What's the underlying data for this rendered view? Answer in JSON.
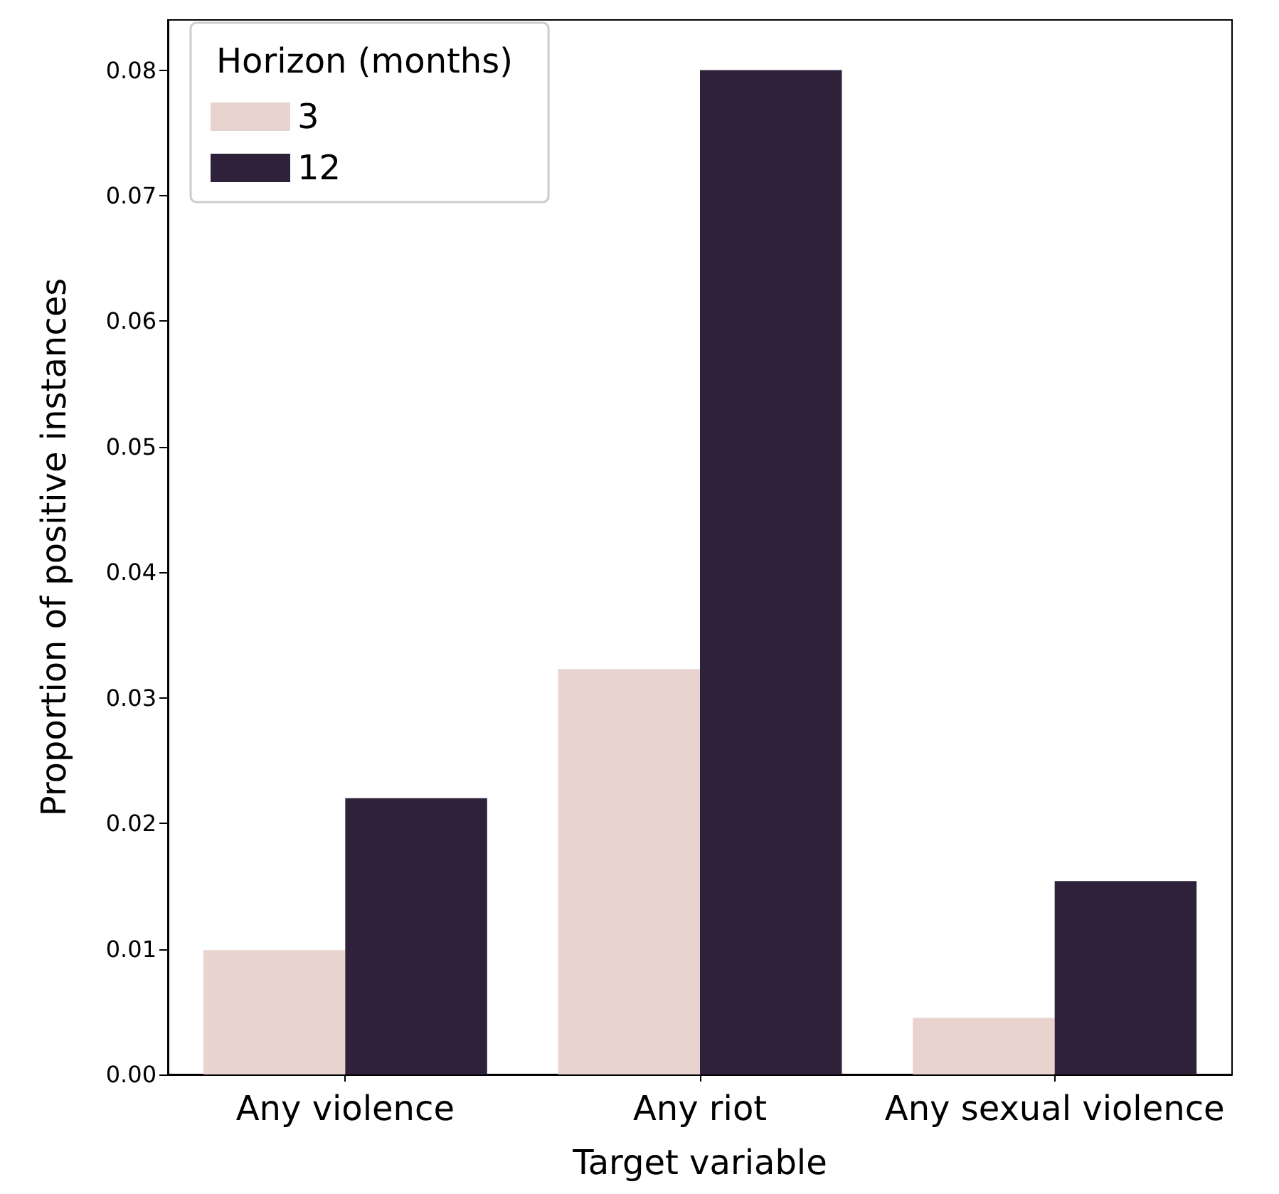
{
  "chart_data": {
    "type": "bar",
    "xlabel": "Target variable",
    "ylabel": "Proportion of positive instances",
    "legend_title": "Horizon (months)",
    "categories": [
      "Any violence",
      "Any riot",
      "Any sexual violence"
    ],
    "series": [
      {
        "name": "3",
        "color": "#e8d3cf",
        "values": [
          0.0099,
          0.0323,
          0.0045
        ]
      },
      {
        "name": "12",
        "color": "#2f2139",
        "values": [
          0.022,
          0.08,
          0.0154
        ]
      }
    ],
    "ylim": [
      0,
      0.084
    ],
    "yticks": [
      {
        "value": 0,
        "label": "0.00"
      },
      {
        "value": 0.01,
        "label": "0.01"
      },
      {
        "value": 0.02,
        "label": "0.02"
      },
      {
        "value": 0.03,
        "label": "0.03"
      },
      {
        "value": 0.04,
        "label": "0.04"
      },
      {
        "value": 0.05,
        "label": "0.05"
      },
      {
        "value": 0.06,
        "label": "0.06"
      },
      {
        "value": 0.07,
        "label": "0.07"
      },
      {
        "value": 0.08,
        "label": "0.08"
      }
    ],
    "grid": false,
    "legend": "top left"
  }
}
